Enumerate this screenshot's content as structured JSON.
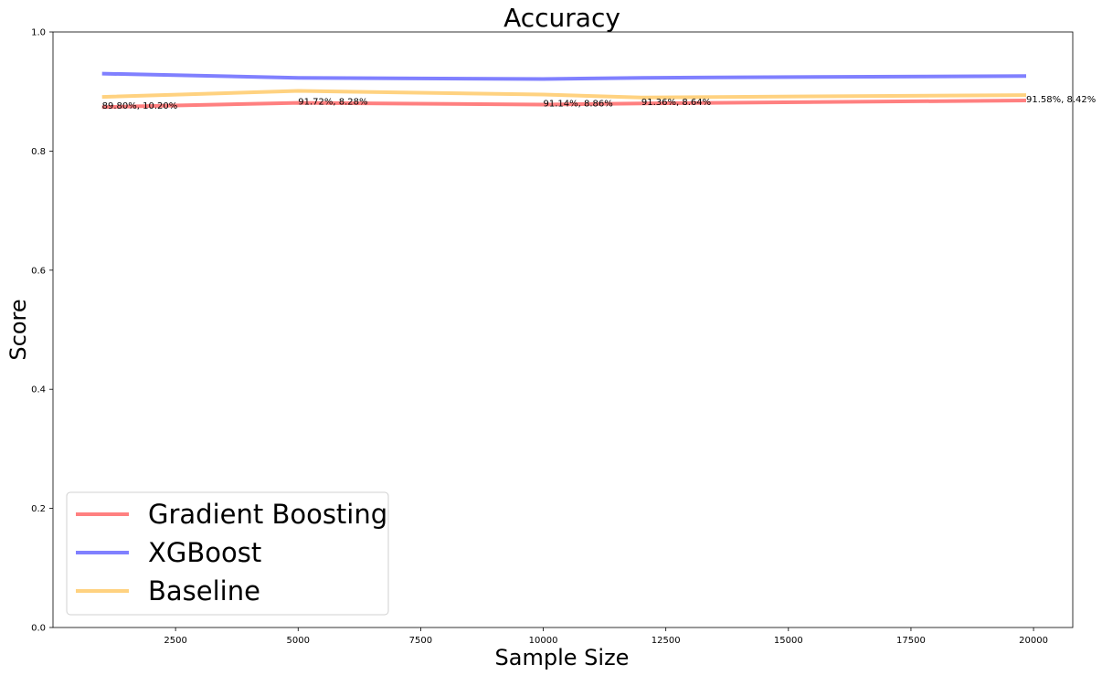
{
  "chart_data": {
    "type": "line",
    "title": "Accuracy",
    "xlabel": "Sample Size",
    "ylabel": "Score",
    "x": [
      1000,
      5000,
      10000,
      12000,
      19850
    ],
    "xlim": [
      0,
      20800
    ],
    "ylim": [
      0.0,
      1.0
    ],
    "xticks": [
      2500,
      5000,
      7500,
      10000,
      12500,
      15000,
      17500,
      20000
    ],
    "yticks": [
      0.0,
      0.2,
      0.4,
      0.6,
      0.8,
      1.0
    ],
    "grid": false,
    "legend_position": "lower-left",
    "series": [
      {
        "name": "Gradient Boosting",
        "color": "#ff8080",
        "values": [
          0.874,
          0.881,
          0.878,
          0.88,
          0.885
        ]
      },
      {
        "name": "XGBoost",
        "color": "#8080ff",
        "values": [
          0.93,
          0.923,
          0.921,
          0.923,
          0.926
        ]
      },
      {
        "name": "Baseline",
        "color": "#ffd280",
        "values": [
          0.891,
          0.901,
          0.895,
          0.89,
          0.894
        ]
      }
    ],
    "annotations": [
      {
        "x": 1000,
        "y": 0.874,
        "text": "89.80%, 10.20%"
      },
      {
        "x": 5000,
        "y": 0.881,
        "text": "91.72%, 8.28%"
      },
      {
        "x": 10000,
        "y": 0.878,
        "text": "91.14%, 8.86%"
      },
      {
        "x": 12000,
        "y": 0.88,
        "text": "91.36%, 8.64%"
      },
      {
        "x": 19850,
        "y": 0.885,
        "text": "91.58%, 8.42%"
      }
    ]
  }
}
